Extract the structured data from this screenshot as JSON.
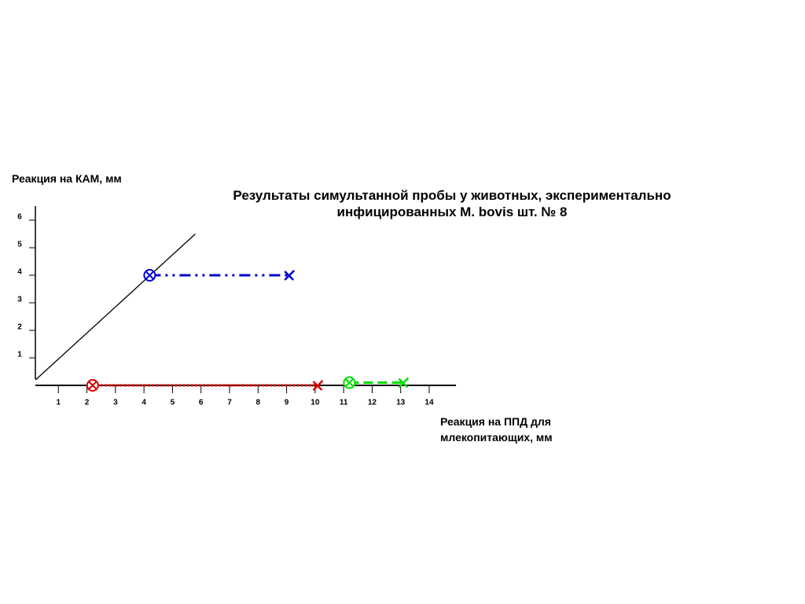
{
  "chart_data": {
    "type": "line",
    "title": "Результаты симультанной пробы у животных, экспериментально инфицированных  M. bovis шт. № 8",
    "y_label": "Реакция на КАМ, мм",
    "x_label": "Реакция на ППД для млекопитающих, мм",
    "xlim": [
      0,
      14.8
    ],
    "ylim": [
      0,
      6.2
    ],
    "xticks": [
      1,
      2,
      3,
      4,
      5,
      6,
      7,
      8,
      9,
      10,
      11,
      12,
      13,
      14
    ],
    "yticks": [
      1,
      2,
      3,
      4,
      5,
      6
    ],
    "series": [
      {
        "color": "#000000",
        "x": [
          0.2,
          5.8
        ],
        "values": [
          0.2,
          5.5
        ]
      },
      {
        "color": "#0000cc",
        "dash": "dashdot",
        "x": [
          4.2,
          9.1
        ],
        "values": [
          4,
          4
        ]
      },
      {
        "color": "#dd0000",
        "dash": "dotted",
        "x": [
          2.2,
          10.1
        ],
        "values": [
          0,
          0
        ]
      },
      {
        "color": "#00dd00",
        "dash": "dashed",
        "x": [
          11.2,
          13.1
        ],
        "values": [
          0.1,
          0.1
        ]
      }
    ]
  }
}
